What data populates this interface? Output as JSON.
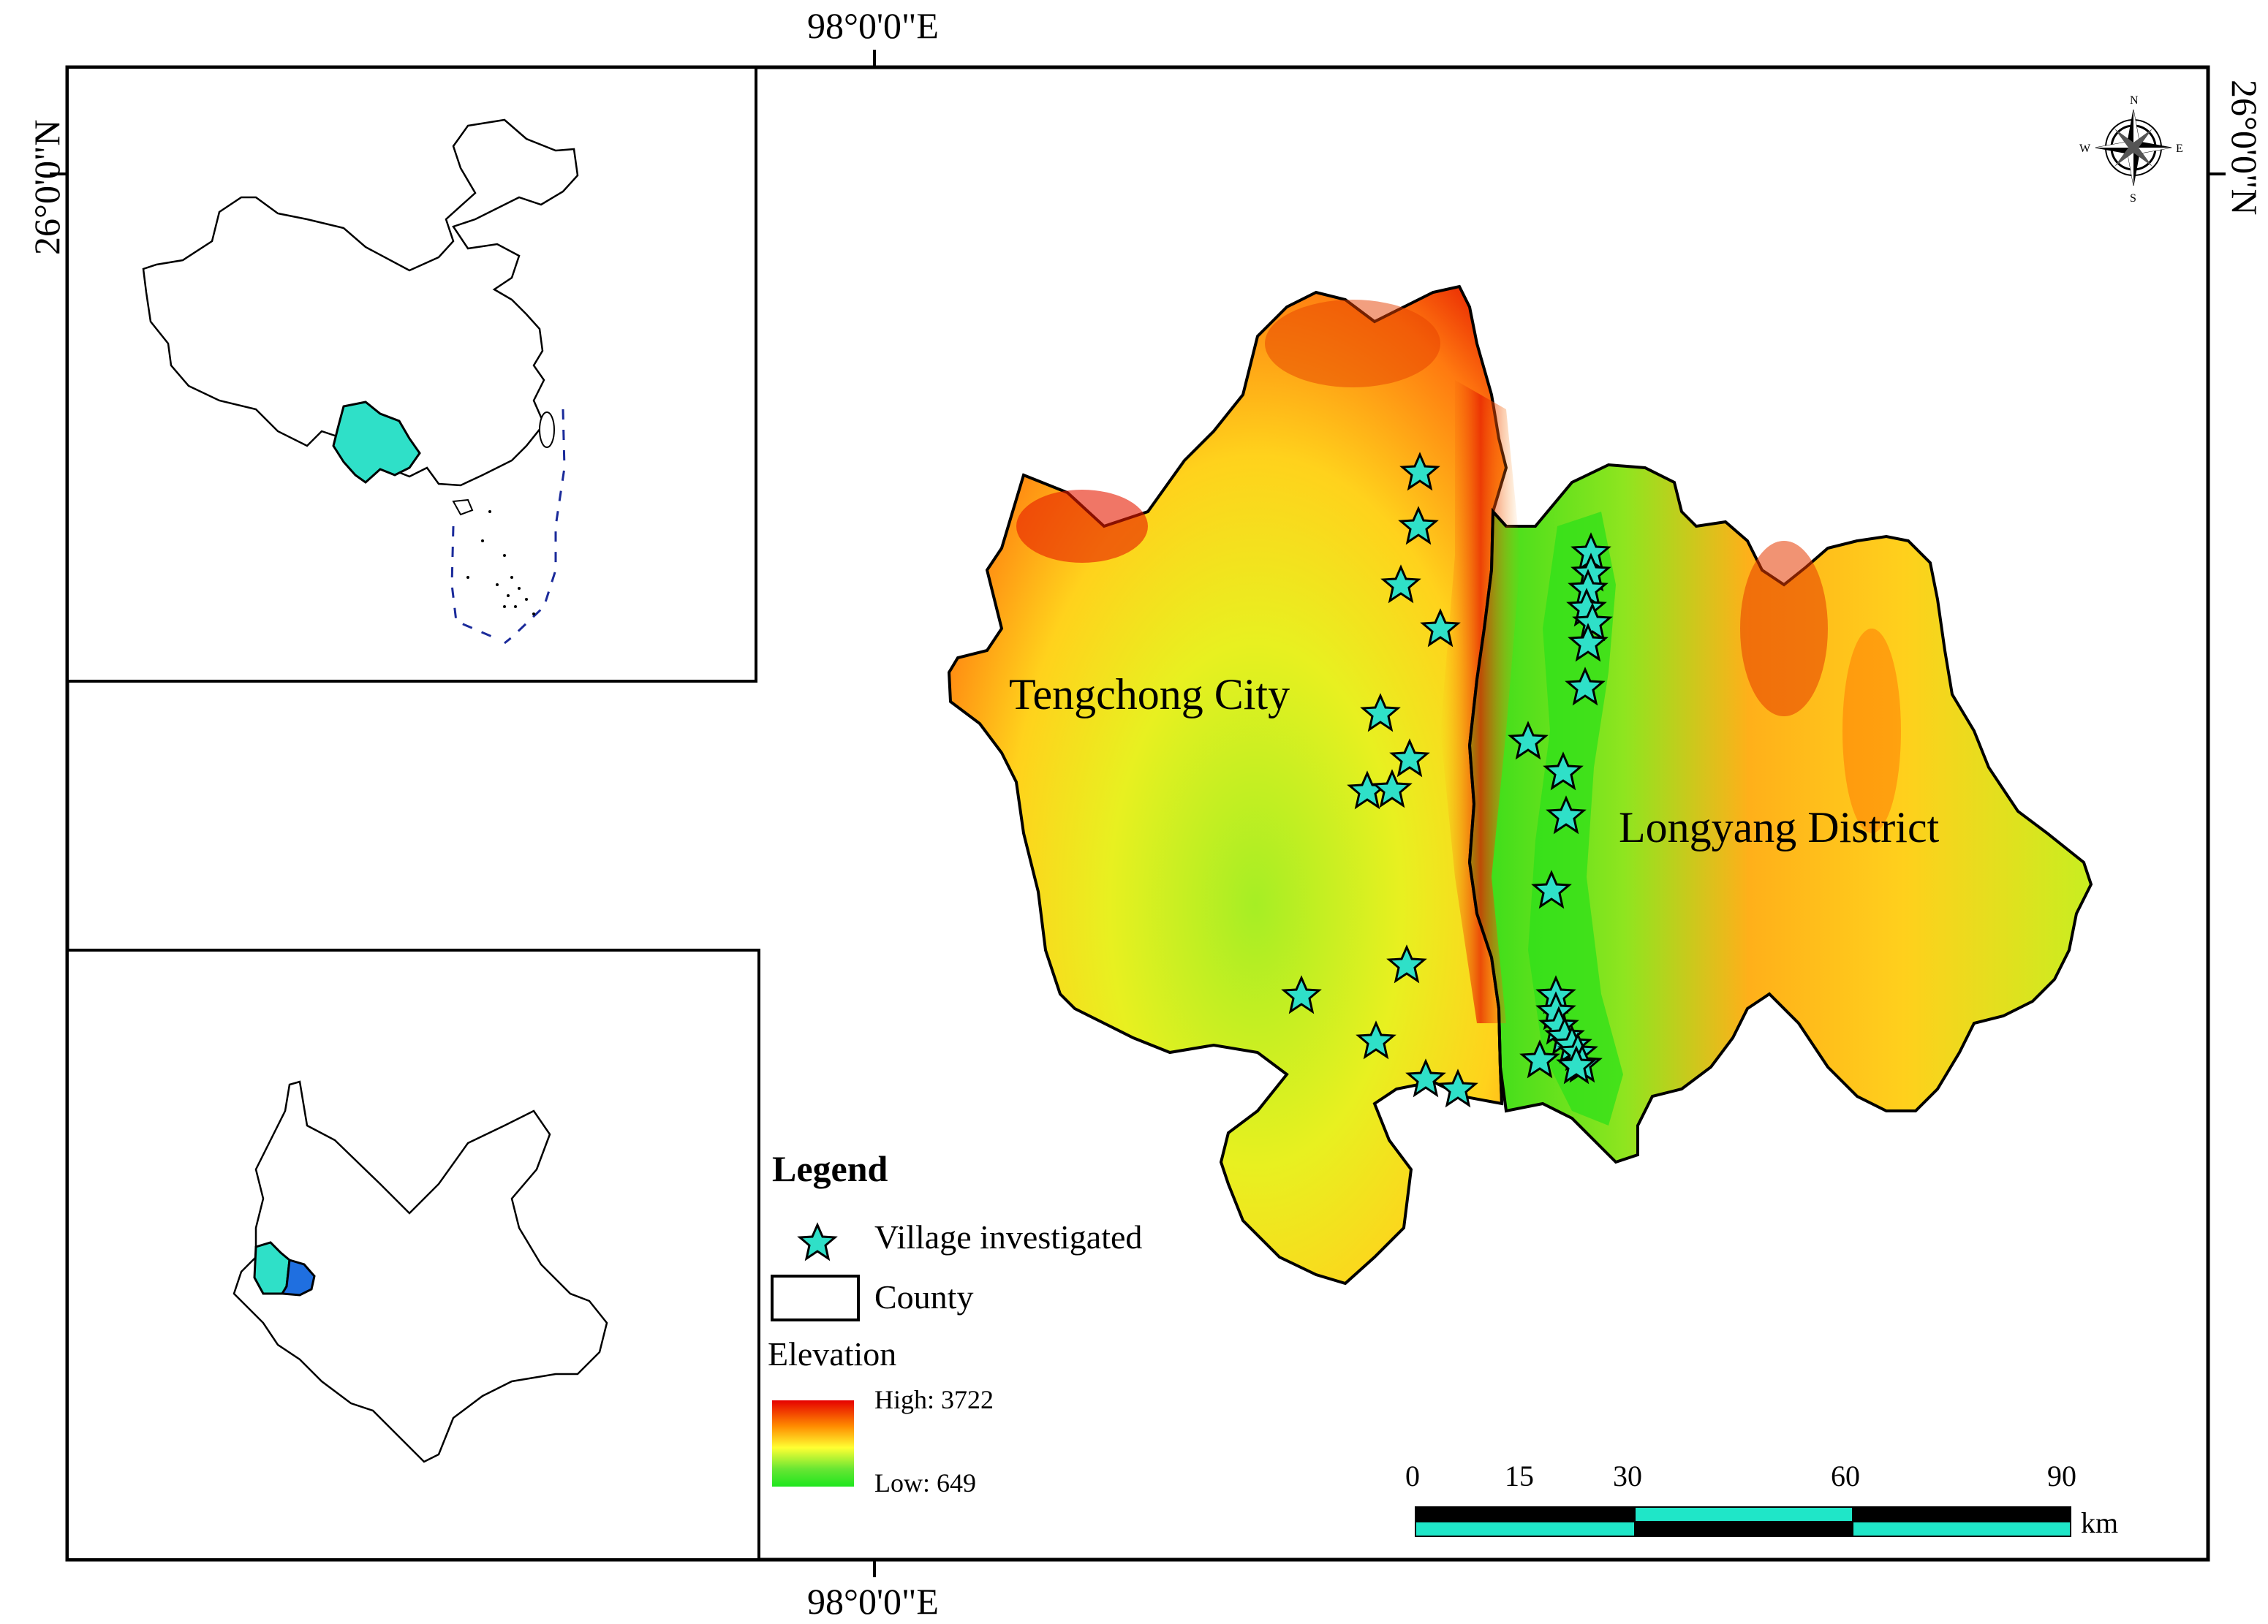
{
  "coordinates": {
    "top_lon": "98°0'0\"E",
    "bottom_lon": "98°0'0\"E",
    "left_lat": "26°0'0\"N",
    "right_lat": "26°0'0\"N"
  },
  "places": {
    "tengchong": "Tengchong City",
    "longyang": "Longyang District"
  },
  "compass": {
    "n": "N",
    "s": "S",
    "e": "E",
    "w": "W"
  },
  "legend": {
    "title": "Legend",
    "village": "Village investigated",
    "county": "County",
    "elevation_title": "Elevation",
    "high_label": "High: 3722",
    "low_label": "Low: 649"
  },
  "elevation": {
    "high": 3722,
    "low": 649,
    "colors": [
      "#e60000",
      "#ff8c00",
      "#ffff33",
      "#66e633",
      "#1ee61e"
    ]
  },
  "scale_bar": {
    "ticks": [
      "0",
      "15",
      "30",
      "60",
      "90"
    ],
    "unit": "km"
  },
  "colors": {
    "village_star": "#2fe0c8",
    "yunnan_highlight": "#2fe0c8",
    "longyang_inset": "#1f6fe0",
    "scale_cyan": "#1fe6c8",
    "scale_black": "#000000"
  },
  "villages_count": 38
}
